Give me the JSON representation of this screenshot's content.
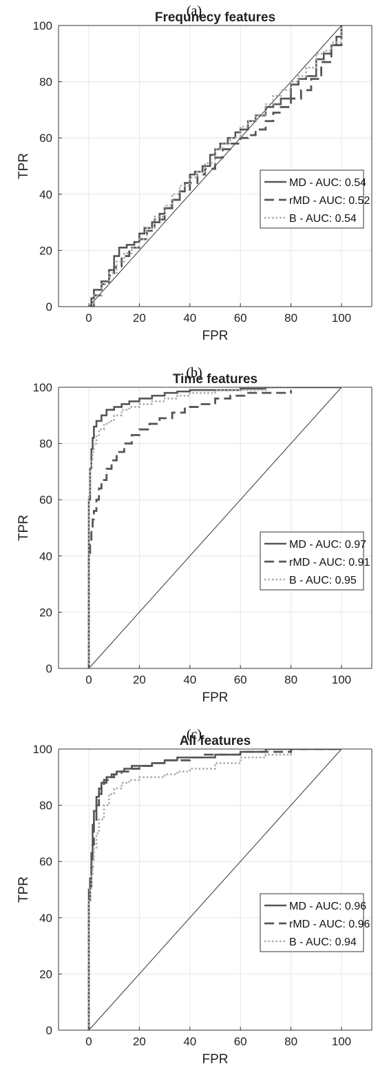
{
  "chart_data": [
    {
      "type": "line",
      "panel_label": "(a)",
      "title": "Frequnecy features",
      "xlabel": "FPR",
      "ylabel": "TPR",
      "xlim": [
        -12,
        112
      ],
      "ylim": [
        0,
        100
      ],
      "xticks": [
        0,
        20,
        40,
        60,
        80,
        100
      ],
      "yticks": [
        0,
        20,
        40,
        60,
        80,
        100
      ],
      "grid": true,
      "legend_position": "right",
      "diagonal": true,
      "series": [
        {
          "name": "MD - AUC: 0.54",
          "style": "solid",
          "color": "#555555",
          "x": [
            0,
            1,
            2,
            5,
            8,
            10,
            12,
            15,
            18,
            20,
            22,
            25,
            28,
            30,
            33,
            36,
            38,
            40,
            42,
            45,
            48,
            50,
            52,
            55,
            58,
            60,
            63,
            66,
            70,
            73,
            76,
            80,
            83,
            86,
            90,
            93,
            96,
            98,
            100
          ],
          "y": [
            0,
            3,
            6,
            9,
            13,
            18,
            21,
            22,
            23,
            26,
            28,
            30,
            33,
            35,
            38,
            41,
            44,
            47,
            48,
            50,
            54,
            56,
            58,
            60,
            62,
            63,
            66,
            68,
            71,
            72,
            74,
            79,
            81,
            82,
            88,
            90,
            93,
            96,
            100
          ]
        },
        {
          "name": "rMD - AUC: 0.52",
          "style": "dashed",
          "color": "#555555",
          "x": [
            0,
            2,
            5,
            8,
            10,
            13,
            16,
            20,
            23,
            26,
            30,
            33,
            36,
            40,
            43,
            46,
            50,
            53,
            56,
            60,
            63,
            66,
            70,
            73,
            76,
            80,
            84,
            88,
            92,
            96,
            100
          ],
          "y": [
            0,
            4,
            8,
            11,
            14,
            18,
            21,
            24,
            27,
            31,
            35,
            38,
            41,
            44,
            47,
            49,
            53,
            56,
            58,
            60,
            61,
            63,
            66,
            69,
            71,
            74,
            77,
            81,
            87,
            93,
            100
          ]
        },
        {
          "name": "B - AUC: 0.54",
          "style": "dotted",
          "color": "#aaaaaa",
          "x": [
            0,
            2,
            5,
            8,
            11,
            14,
            17,
            20,
            23,
            26,
            30,
            33,
            36,
            40,
            43,
            46,
            50,
            53,
            56,
            60,
            63,
            66,
            70,
            73,
            76,
            80,
            83,
            86,
            90,
            93,
            96,
            100
          ],
          "y": [
            0,
            4,
            8,
            12,
            16,
            19,
            21,
            24,
            28,
            32,
            36,
            40,
            43,
            46,
            48,
            51,
            56,
            58,
            60,
            64,
            66,
            68,
            72,
            75,
            77,
            80,
            82,
            85,
            90,
            91,
            94,
            100
          ]
        }
      ]
    },
    {
      "type": "line",
      "panel_label": "(b)",
      "title": "Time features",
      "xlabel": "FPR",
      "ylabel": "TPR",
      "xlim": [
        -12,
        112
      ],
      "ylim": [
        0,
        100
      ],
      "xticks": [
        0,
        20,
        40,
        60,
        80,
        100
      ],
      "yticks": [
        0,
        20,
        40,
        60,
        80,
        100
      ],
      "grid": true,
      "legend_position": "right",
      "diagonal": true,
      "series": [
        {
          "name": "MD - AUC: 0.97",
          "style": "solid",
          "color": "#555555",
          "x": [
            0,
            0,
            0.5,
            1,
            1.5,
            2,
            3,
            5,
            7,
            10,
            13,
            16,
            20,
            25,
            30,
            35,
            40,
            50,
            60,
            70,
            80,
            90,
            100
          ],
          "y": [
            0,
            60,
            71,
            78,
            82,
            86,
            88,
            90,
            92,
            93,
            94,
            95,
            96,
            97,
            98,
            98.5,
            99,
            99,
            99.5,
            100,
            100,
            100,
            100
          ]
        },
        {
          "name": "rMD - AUC: 0.91",
          "style": "dashed",
          "color": "#555555",
          "x": [
            0,
            0,
            0.5,
            1,
            1.5,
            2,
            3,
            4,
            5,
            7,
            9,
            11,
            14,
            17,
            20,
            24,
            28,
            33,
            38,
            44,
            50,
            56,
            62,
            70,
            80
          ],
          "y": [
            0,
            40,
            44,
            49,
            53,
            56,
            60,
            64,
            67,
            71,
            74,
            77,
            80,
            83,
            85,
            87,
            89,
            91,
            93,
            94,
            96,
            97,
            98,
            98,
            99
          ]
        },
        {
          "name": "B - AUC: 0.95",
          "style": "dotted",
          "color": "#aaaaaa",
          "x": [
            0,
            0,
            0.5,
            1,
            1.5,
            2,
            3,
            4,
            6,
            8,
            10,
            13,
            16,
            20,
            25,
            30,
            35,
            40,
            50,
            60,
            70,
            80
          ],
          "y": [
            0,
            62,
            70,
            74,
            77,
            80,
            83,
            85,
            87,
            88,
            90,
            92,
            93,
            94,
            95,
            96,
            97,
            98,
            99,
            99,
            100,
            100
          ]
        }
      ]
    },
    {
      "type": "line",
      "panel_label": "(c)",
      "title": "All features",
      "xlabel": "FPR",
      "ylabel": "TPR",
      "xlim": [
        -12,
        112
      ],
      "ylim": [
        0,
        100
      ],
      "xticks": [
        0,
        20,
        40,
        60,
        80,
        100
      ],
      "yticks": [
        0,
        20,
        40,
        60,
        80,
        100
      ],
      "grid": true,
      "legend_position": "right",
      "diagonal": true,
      "series": [
        {
          "name": "MD - AUC: 0.96",
          "style": "solid",
          "color": "#555555",
          "x": [
            0,
            0,
            0.5,
            1,
            1.5,
            2,
            3,
            4,
            5,
            7,
            9,
            11,
            14,
            17,
            20,
            25,
            30,
            35,
            40,
            50,
            60,
            70,
            80,
            100
          ],
          "y": [
            0,
            50,
            54,
            63,
            73,
            78,
            83,
            86,
            88,
            90,
            91,
            92,
            93,
            94,
            94,
            95,
            96,
            97,
            97,
            98,
            99,
            100,
            100,
            100
          ]
        },
        {
          "name": "rMD - AUC: 0.96",
          "style": "dashed",
          "color": "#555555",
          "x": [
            0,
            0,
            0.5,
            1,
            1.5,
            2,
            3,
            4,
            5,
            6,
            8,
            10,
            13,
            16,
            20,
            25,
            30,
            35,
            40,
            45,
            50,
            60,
            70,
            80,
            100
          ],
          "y": [
            0,
            45,
            50,
            58,
            66,
            74,
            80,
            84,
            87,
            89,
            90,
            91,
            92,
            93,
            94,
            95,
            96,
            96,
            97,
            98,
            98,
            99,
            99,
            100,
            100
          ]
        },
        {
          "name": "B - AUC: 0.94",
          "style": "dotted",
          "color": "#aaaaaa",
          "x": [
            0,
            0,
            0.5,
            1,
            1.5,
            2,
            3,
            4,
            6,
            8,
            10,
            13,
            16,
            20,
            25,
            30,
            35,
            40,
            50,
            60,
            70,
            80
          ],
          "y": [
            0,
            46,
            50,
            55,
            60,
            65,
            70,
            75,
            80,
            84,
            86,
            88,
            89,
            90,
            90,
            91,
            92,
            93,
            95,
            97,
            98,
            99
          ]
        }
      ]
    }
  ]
}
